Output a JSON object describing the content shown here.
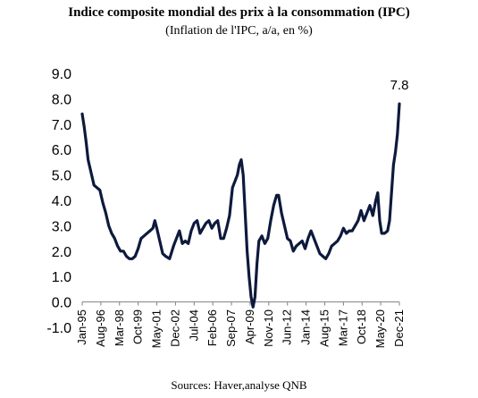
{
  "chart_data": {
    "type": "line",
    "title": "Indice composite mondial des prix à la consommation (IPC)",
    "subtitle": "(Inflation de l'IPC, a/a, en %)",
    "source": "Sources: Haver,analyse QNB",
    "ylim": [
      -1.0,
      9.0
    ],
    "yticks": [
      "9.0",
      "8.0",
      "7.0",
      "6.0",
      "5.0",
      "4.0",
      "3.0",
      "2.0",
      "1.0",
      "0.0",
      "-1.0"
    ],
    "xtick_labels": [
      "Jan-95",
      "Aug-96",
      "Mar-98",
      "Oct-99",
      "May-01",
      "Dec-02",
      "Jul-04",
      "Feb-06",
      "Sep-07",
      "Apr-09",
      "Nov-10",
      "Jun-12",
      "Jan-14",
      "Aug-15",
      "Mar-17",
      "Oct-18",
      "May-20",
      "Dec-21"
    ],
    "annotation": "7.8",
    "grid": false,
    "series": [
      {
        "color": "#0d1a3c",
        "points": [
          [
            "1995-01",
            7.4
          ],
          [
            "1995-03",
            6.9
          ],
          [
            "1995-05",
            6.3
          ],
          [
            "1995-07",
            5.6
          ],
          [
            "1995-10",
            5.1
          ],
          [
            "1996-01",
            4.6
          ],
          [
            "1996-04",
            4.5
          ],
          [
            "1996-07",
            4.4
          ],
          [
            "1996-10",
            3.9
          ],
          [
            "1997-01",
            3.5
          ],
          [
            "1997-04",
            3.0
          ],
          [
            "1997-07",
            2.7
          ],
          [
            "1997-10",
            2.5
          ],
          [
            "1998-01",
            2.2
          ],
          [
            "1998-04",
            2.0
          ],
          [
            "1998-07",
            2.0
          ],
          [
            "1998-10",
            1.8
          ],
          [
            "1999-01",
            1.7
          ],
          [
            "1999-04",
            1.7
          ],
          [
            "1999-07",
            1.8
          ],
          [
            "1999-10",
            2.1
          ],
          [
            "2000-01",
            2.5
          ],
          [
            "2000-04",
            2.6
          ],
          [
            "2000-07",
            2.7
          ],
          [
            "2000-10",
            2.8
          ],
          [
            "2001-01",
            2.9
          ],
          [
            "2001-03",
            3.2
          ],
          [
            "2001-05",
            2.9
          ],
          [
            "2001-08",
            2.4
          ],
          [
            "2001-11",
            1.9
          ],
          [
            "2002-02",
            1.8
          ],
          [
            "2002-06",
            1.7
          ],
          [
            "2002-10",
            2.2
          ],
          [
            "2003-01",
            2.5
          ],
          [
            "2003-04",
            2.8
          ],
          [
            "2003-07",
            2.3
          ],
          [
            "2003-10",
            2.4
          ],
          [
            "2004-01",
            2.3
          ],
          [
            "2004-04",
            2.8
          ],
          [
            "2004-07",
            3.1
          ],
          [
            "2004-10",
            3.2
          ],
          [
            "2005-01",
            2.7
          ],
          [
            "2005-04",
            2.9
          ],
          [
            "2005-07",
            3.1
          ],
          [
            "2005-10",
            3.2
          ],
          [
            "2006-01",
            2.9
          ],
          [
            "2006-04",
            3.1
          ],
          [
            "2006-07",
            3.2
          ],
          [
            "2006-10",
            2.5
          ],
          [
            "2007-01",
            2.5
          ],
          [
            "2007-04",
            2.9
          ],
          [
            "2007-07",
            3.4
          ],
          [
            "2007-10",
            4.5
          ],
          [
            "2008-01",
            4.8
          ],
          [
            "2008-03",
            5.0
          ],
          [
            "2008-05",
            5.4
          ],
          [
            "2008-07",
            5.6
          ],
          [
            "2008-09",
            5.0
          ],
          [
            "2008-11",
            3.5
          ],
          [
            "2009-01",
            2.0
          ],
          [
            "2009-03",
            1.0
          ],
          [
            "2009-05",
            0.2
          ],
          [
            "2009-07",
            -0.2
          ],
          [
            "2009-09",
            0.2
          ],
          [
            "2009-11",
            1.5
          ],
          [
            "2010-01",
            2.4
          ],
          [
            "2010-04",
            2.6
          ],
          [
            "2010-07",
            2.3
          ],
          [
            "2010-10",
            2.5
          ],
          [
            "2011-01",
            3.2
          ],
          [
            "2011-04",
            3.8
          ],
          [
            "2011-07",
            4.2
          ],
          [
            "2011-09",
            4.2
          ],
          [
            "2011-12",
            3.5
          ],
          [
            "2012-03",
            3.0
          ],
          [
            "2012-06",
            2.5
          ],
          [
            "2012-09",
            2.4
          ],
          [
            "2012-12",
            2.0
          ],
          [
            "2013-03",
            2.2
          ],
          [
            "2013-06",
            2.3
          ],
          [
            "2013-09",
            2.4
          ],
          [
            "2013-12",
            2.1
          ],
          [
            "2014-03",
            2.5
          ],
          [
            "2014-06",
            2.8
          ],
          [
            "2014-09",
            2.5
          ],
          [
            "2014-12",
            2.2
          ],
          [
            "2015-03",
            1.9
          ],
          [
            "2015-06",
            1.8
          ],
          [
            "2015-09",
            1.7
          ],
          [
            "2015-12",
            1.9
          ],
          [
            "2016-03",
            2.2
          ],
          [
            "2016-06",
            2.3
          ],
          [
            "2016-09",
            2.4
          ],
          [
            "2016-12",
            2.6
          ],
          [
            "2017-03",
            2.9
          ],
          [
            "2017-06",
            2.7
          ],
          [
            "2017-09",
            2.8
          ],
          [
            "2017-12",
            2.8
          ],
          [
            "2018-03",
            3.0
          ],
          [
            "2018-06",
            3.2
          ],
          [
            "2018-09",
            3.6
          ],
          [
            "2018-12",
            3.2
          ],
          [
            "2019-03",
            3.5
          ],
          [
            "2019-06",
            3.8
          ],
          [
            "2019-09",
            3.4
          ],
          [
            "2019-12",
            4.0
          ],
          [
            "2020-02",
            4.3
          ],
          [
            "2020-04",
            3.2
          ],
          [
            "2020-06",
            2.7
          ],
          [
            "2020-09",
            2.7
          ],
          [
            "2020-12",
            2.8
          ],
          [
            "2021-02",
            3.2
          ],
          [
            "2021-04",
            4.3
          ],
          [
            "2021-06",
            5.4
          ],
          [
            "2021-08",
            5.9
          ],
          [
            "2021-10",
            6.6
          ],
          [
            "2021-12",
            7.8
          ]
        ]
      }
    ]
  }
}
